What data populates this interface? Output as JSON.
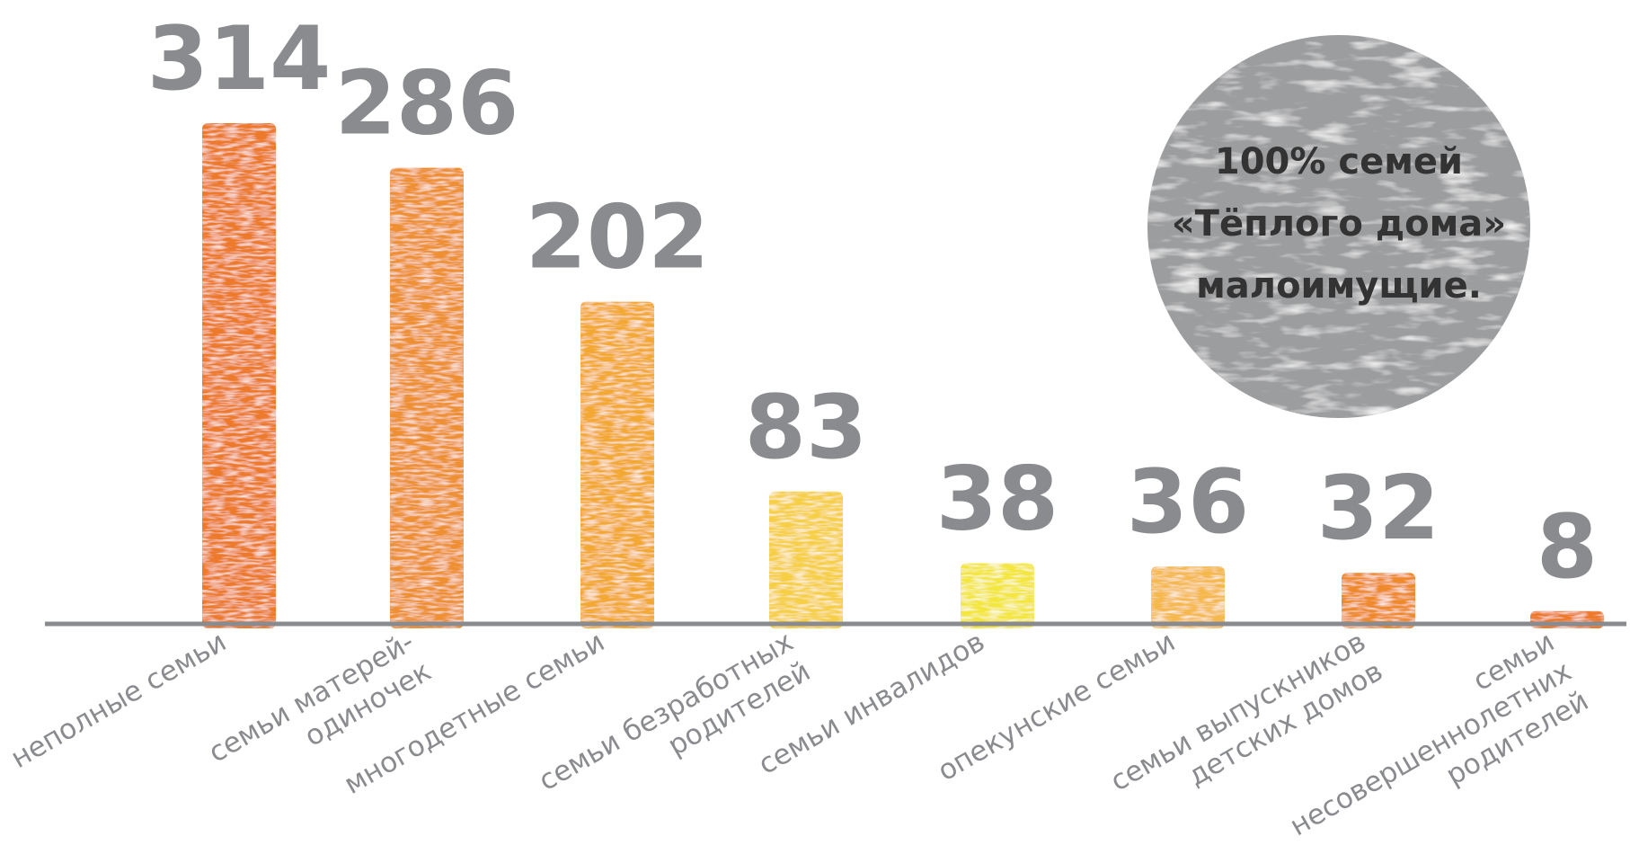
{
  "chart_data": {
    "type": "bar",
    "categories": [
      [
        "неполные семьи"
      ],
      [
        "семьи матерей-",
        "одиночек"
      ],
      [
        "многодетные семьи"
      ],
      [
        "семьи безработных",
        "родителей"
      ],
      [
        "семьи инвалидов"
      ],
      [
        "опекунские семьи"
      ],
      [
        "семьи выпускников",
        "детских домов"
      ],
      [
        "семьи",
        "несовершеннолетних",
        "родителей"
      ]
    ],
    "values": [
      314,
      286,
      202,
      83,
      38,
      36,
      32,
      8
    ],
    "value_labels": [
      "314",
      "286",
      "202",
      "83",
      "38",
      "36",
      "32",
      "8"
    ],
    "colors": [
      "#ec7a2b",
      "#ee9030",
      "#f3a832",
      "#f6cf45",
      "#f3e63c",
      "#f5b84e",
      "#ef8a2c",
      "#ec7a2b"
    ],
    "ylim": [
      0,
      314
    ],
    "grid": false,
    "legend": "none",
    "axis_color": "#8a8b8f",
    "label_color": "#8a8b8f",
    "annotation": {
      "lines": [
        "100% семей",
        "«Тёплого дома»",
        "малоимущие."
      ],
      "background": "#9c9d9f",
      "text_color": "#333333"
    }
  }
}
